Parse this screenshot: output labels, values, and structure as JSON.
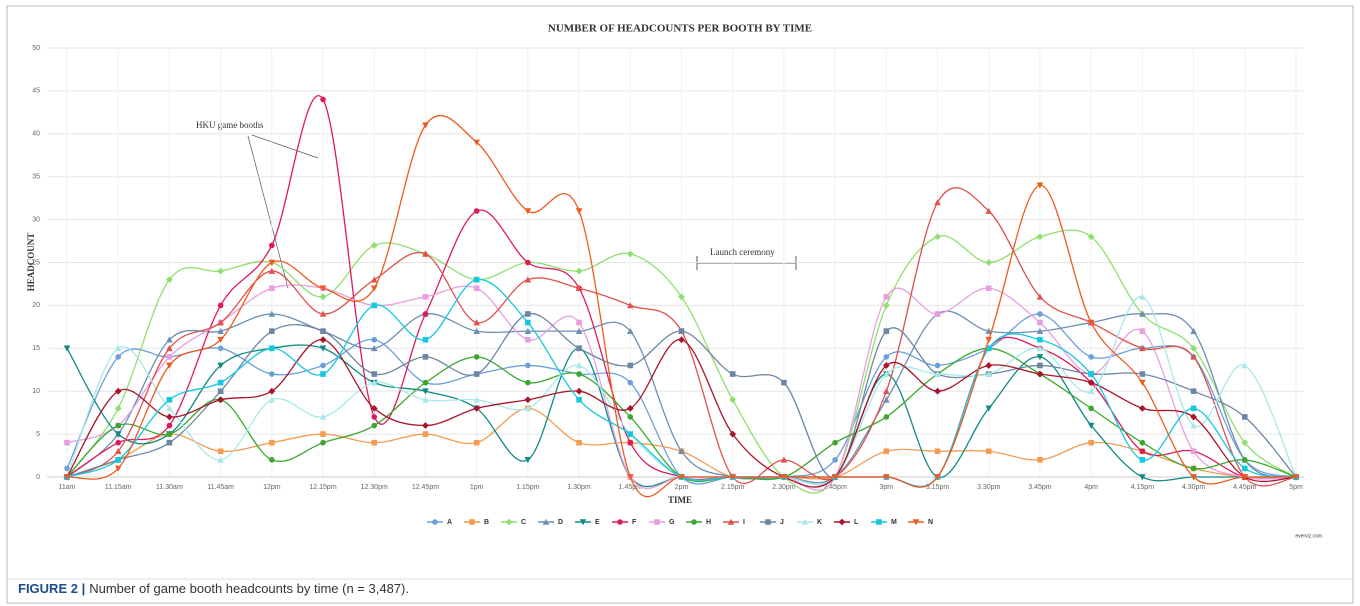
{
  "chart_data": {
    "type": "line",
    "title": "NUMBER OF HEADCOUNTS PER BOOTH BY TIME",
    "xlabel": "TIME",
    "ylabel": "HEADCOUNT",
    "categories": [
      "11am",
      "11.15am",
      "11.30am",
      "11.45am",
      "12pm",
      "12.15pm",
      "12.30pm",
      "12.45pm",
      "1pm",
      "1.15pm",
      "1.30pm",
      "1.45pm",
      "2pm",
      "2.15pm",
      "2.30pm",
      "2.45pm",
      "3pm",
      "3.15pm",
      "3.30pm",
      "3.45pm",
      "4pm",
      "4.15pm",
      "4.30pm",
      "4.45pm",
      "5pm"
    ],
    "ylim": [
      0,
      50
    ],
    "yticks": [
      0,
      5,
      10,
      15,
      20,
      25,
      30,
      35,
      40,
      45,
      50
    ],
    "grid": true,
    "legend": "bottom",
    "series": [
      {
        "name": "A",
        "color": "#6a9fd8",
        "marker": "circle",
        "values": [
          1,
          14,
          14,
          15,
          12,
          13,
          16,
          11,
          12,
          13,
          12,
          11,
          0,
          0,
          0,
          2,
          14,
          13,
          15,
          19,
          14,
          15,
          14,
          2,
          0
        ]
      },
      {
        "name": "B",
        "color": "#f39c50",
        "marker": "square",
        "values": [
          0,
          2,
          5,
          3,
          4,
          5,
          4,
          5,
          4,
          8,
          4,
          4,
          3,
          0,
          0,
          0,
          3,
          3,
          3,
          2,
          4,
          3,
          1,
          0,
          0
        ]
      },
      {
        "name": "C",
        "color": "#8fdf6f",
        "marker": "diamond",
        "values": [
          0,
          8,
          23,
          24,
          25,
          21,
          27,
          26,
          23,
          25,
          24,
          26,
          21,
          9,
          0,
          0,
          20,
          28,
          25,
          28,
          28,
          19,
          15,
          4,
          0
        ]
      },
      {
        "name": "D",
        "color": "#6b8fb5",
        "marker": "triangle",
        "values": [
          0,
          5,
          16,
          17,
          19,
          17,
          15,
          19,
          17,
          17,
          17,
          17,
          3,
          0,
          0,
          0,
          9,
          19,
          17,
          17,
          18,
          19,
          17,
          2,
          0
        ]
      },
      {
        "name": "E",
        "color": "#0f8a84",
        "marker": "triangle-down",
        "values": [
          15,
          5,
          5,
          13,
          15,
          15,
          11,
          10,
          8,
          2,
          15,
          0,
          0,
          0,
          0,
          0,
          12,
          0,
          8,
          14,
          6,
          0,
          0,
          0,
          0
        ]
      },
      {
        "name": "F",
        "color": "#e0195c",
        "marker": "circle",
        "values": [
          0,
          4,
          6,
          20,
          27,
          44,
          7,
          19,
          31,
          25,
          22,
          4,
          0,
          0,
          0,
          0,
          0,
          0,
          15,
          15,
          11,
          3,
          3,
          0,
          0
        ]
      },
      {
        "name": "G",
        "color": "#e89ee0",
        "marker": "square",
        "values": [
          4,
          6,
          14,
          18,
          22,
          22,
          20,
          21,
          22,
          16,
          18,
          0,
          0,
          0,
          0,
          0,
          21,
          19,
          22,
          18,
          12,
          17,
          3,
          0,
          0
        ]
      },
      {
        "name": "H",
        "color": "#3aa82e",
        "marker": "circle",
        "values": [
          0,
          6,
          5,
          9,
          2,
          4,
          6,
          11,
          14,
          11,
          12,
          7,
          0,
          0,
          0,
          4,
          7,
          12,
          15,
          12,
          8,
          4,
          1,
          2,
          0
        ]
      },
      {
        "name": "I",
        "color": "#e0504c",
        "marker": "triangle",
        "values": [
          0,
          3,
          15,
          18,
          24,
          19,
          23,
          26,
          18,
          23,
          22,
          20,
          17,
          0,
          2,
          0,
          10,
          32,
          31,
          21,
          18,
          15,
          14,
          0,
          0
        ]
      },
      {
        "name": "J",
        "color": "#6c86a3",
        "marker": "square",
        "values": [
          0,
          2,
          4,
          10,
          17,
          17,
          12,
          14,
          12,
          19,
          15,
          13,
          17,
          12,
          11,
          0,
          17,
          12,
          12,
          13,
          12,
          12,
          10,
          7,
          0
        ]
      },
      {
        "name": "K",
        "color": "#a8e8e8",
        "marker": "triangle",
        "values": [
          0,
          15,
          8,
          2,
          9,
          7,
          11,
          9,
          9,
          8,
          13,
          5,
          0,
          0,
          0,
          0,
          12,
          12,
          12,
          15,
          10,
          21,
          6,
          13,
          0
        ]
      },
      {
        "name": "L",
        "color": "#a8142a",
        "marker": "diamond",
        "values": [
          0,
          10,
          7,
          9,
          10,
          16,
          8,
          6,
          8,
          9,
          10,
          8,
          16,
          5,
          0,
          0,
          13,
          10,
          13,
          12,
          11,
          8,
          7,
          0,
          0
        ]
      },
      {
        "name": "M",
        "color": "#15c8e0",
        "marker": "square",
        "values": [
          0,
          2,
          9,
          11,
          15,
          12,
          20,
          16,
          23,
          18,
          9,
          5,
          0,
          0,
          0,
          0,
          0,
          0,
          15,
          16,
          12,
          2,
          8,
          1,
          0
        ]
      },
      {
        "name": "N",
        "color": "#ee5a20",
        "marker": "triangle-down",
        "values": [
          0,
          1,
          13,
          16,
          25,
          22,
          22,
          41,
          39,
          31,
          31,
          0,
          0,
          0,
          0,
          0,
          0,
          0,
          16,
          34,
          18,
          11,
          0,
          0,
          0
        ]
      }
    ],
    "annotations": [
      "HKU game booths",
      "Launch ceremony"
    ],
    "credit": "everviz.com",
    "caption_label": "FIGURE 2 |",
    "caption": "Number of game booth headcounts by time (n = 3,487)."
  }
}
